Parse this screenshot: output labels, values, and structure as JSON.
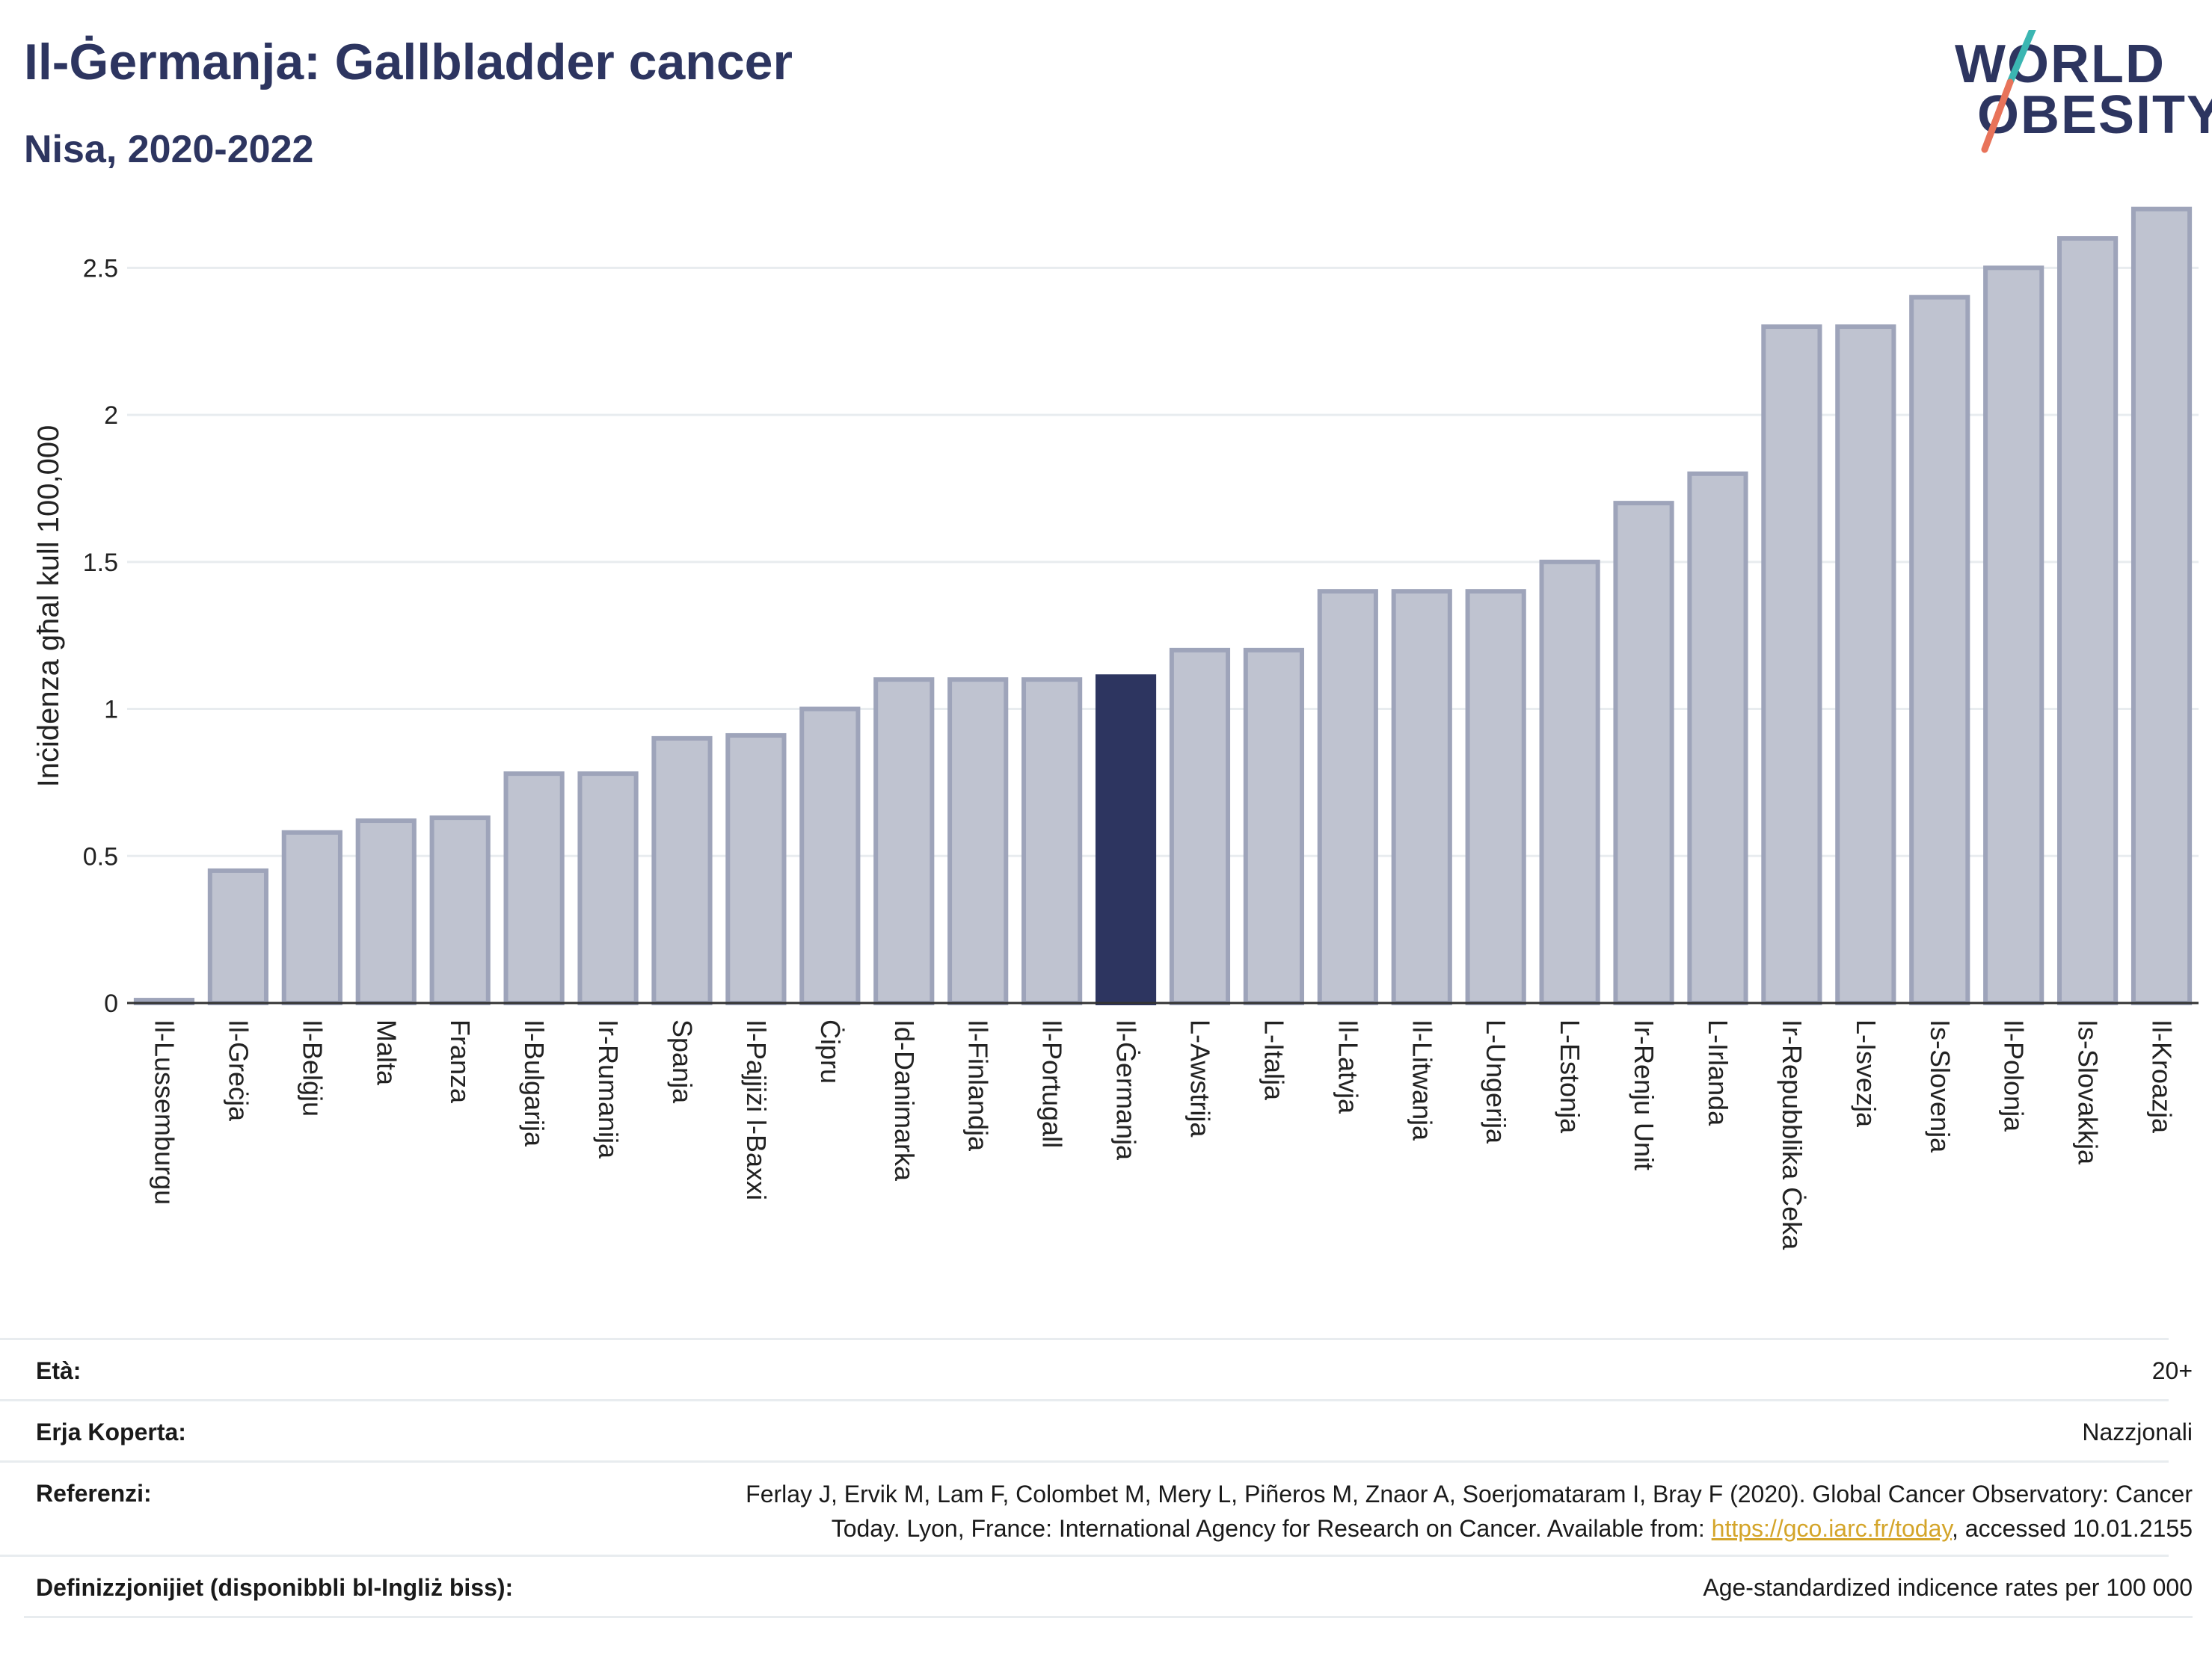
{
  "header": {
    "title": "Il-Ġermanja: Gallbladder cancer",
    "subtitle": "Nisa, 2020-2022"
  },
  "logo": {
    "line1": "WORLD",
    "line2": "OBESITY",
    "slash_color_top": "#3bb6b2",
    "slash_color_bottom": "#e8735a"
  },
  "chart_data": {
    "type": "bar",
    "ylabel": "Inċidenza għal kull 100,000",
    "ylim": [
      0,
      2.75
    ],
    "yticks": [
      0,
      0.5,
      1,
      1.5,
      2,
      2.5
    ],
    "ytick_labels": [
      "0",
      "0.5",
      "1",
      "1.5",
      "2",
      "2.5"
    ],
    "categories": [
      "Il-Lussemburgu",
      "Il-Greċja",
      "Il-Belġju",
      "Malta",
      "Franza",
      "Il-Bulgarija",
      "Ir-Rumanija",
      "Spanja",
      "Il-Pajjiżi l-Baxxi",
      "Ċipru",
      "Id-Danimarka",
      "Il-Finlandja",
      "Il-Portugall",
      "Il-Ġermanja",
      "L-Awstrija",
      "L-Italja",
      "Il-Latvja",
      "Il-Litwanja",
      "L-Ungerija",
      "L-Estonja",
      "Ir-Renju Unit",
      "L-Irlanda",
      "Ir-Repubblika Ċeka",
      "L-Isvezja",
      "Is-Slovenja",
      "Il-Polonja",
      "Is-Slovakkja",
      "Il-Kroazja"
    ],
    "values": [
      0.01,
      0.45,
      0.58,
      0.62,
      0.63,
      0.78,
      0.78,
      0.9,
      0.91,
      1.0,
      1.1,
      1.1,
      1.1,
      1.11,
      1.2,
      1.2,
      1.4,
      1.4,
      1.4,
      1.5,
      1.7,
      1.8,
      2.3,
      2.3,
      2.4,
      2.5,
      2.6,
      2.7
    ],
    "highlight": "Il-Ġermanja",
    "colors": {
      "bar": "#bfc3d0",
      "bar_border": "#9ea4ba",
      "highlight": "#2d3560",
      "grid": "#e8ecef",
      "axis": "#333333"
    }
  },
  "meta": {
    "age_label": "Età:",
    "age_value": "20+",
    "coverage_label": "Erja Koperta:",
    "coverage_value": "Nazzjonali",
    "ref_label": "Referenzi:",
    "ref_line1": "Ferlay J, Ervik M, Lam F, Colombet M, Mery L, Piñeros M, Znaor A, Soerjomataram I, Bray F (2020). Global Cancer Observatory: Cancer",
    "ref_line2_pre": "Today. Lyon, France: International Agency for Research on Cancer. Available from: ",
    "ref_link": "https://gco.iarc.fr/today",
    "ref_line2_post": ", accessed 10.01.2155",
    "def_label": "Definizzjonijiet (disponibbli bl-Ingliż biss):",
    "def_value": "Age-standardized indicence rates per 100 000"
  }
}
